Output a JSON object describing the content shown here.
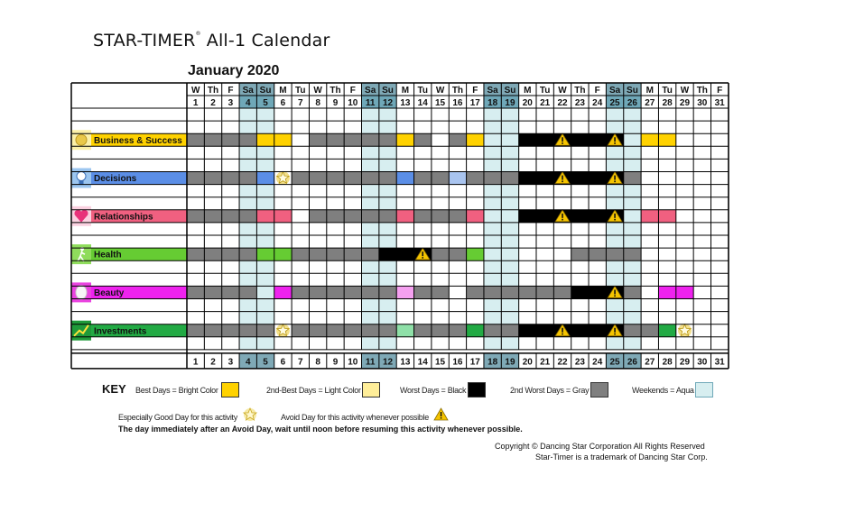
{
  "header": {
    "brand": "STAR-TIMER",
    "brand_mark": "®",
    "subtitle": "All-1 Calendar",
    "month": "January 2020"
  },
  "calendar": {
    "days": [
      {
        "dow": "W",
        "num": "1"
      },
      {
        "dow": "Th",
        "num": "2"
      },
      {
        "dow": "F",
        "num": "3"
      },
      {
        "dow": "Sa",
        "num": "4"
      },
      {
        "dow": "Su",
        "num": "5"
      },
      {
        "dow": "M",
        "num": "6"
      },
      {
        "dow": "Tu",
        "num": "7"
      },
      {
        "dow": "W",
        "num": "8"
      },
      {
        "dow": "Th",
        "num": "9"
      },
      {
        "dow": "F",
        "num": "10"
      },
      {
        "dow": "Sa",
        "num": "11"
      },
      {
        "dow": "Su",
        "num": "12"
      },
      {
        "dow": "M",
        "num": "13"
      },
      {
        "dow": "Tu",
        "num": "14"
      },
      {
        "dow": "W",
        "num": "15"
      },
      {
        "dow": "Th",
        "num": "16"
      },
      {
        "dow": "F",
        "num": "17"
      },
      {
        "dow": "Sa",
        "num": "18"
      },
      {
        "dow": "Su",
        "num": "19"
      },
      {
        "dow": "M",
        "num": "20"
      },
      {
        "dow": "Tu",
        "num": "21"
      },
      {
        "dow": "W",
        "num": "22"
      },
      {
        "dow": "Th",
        "num": "23"
      },
      {
        "dow": "F",
        "num": "24"
      },
      {
        "dow": "Sa",
        "num": "25"
      },
      {
        "dow": "Su",
        "num": "26"
      },
      {
        "dow": "M",
        "num": "27"
      },
      {
        "dow": "Tu",
        "num": "28"
      },
      {
        "dow": "W",
        "num": "29"
      },
      {
        "dow": "Th",
        "num": "30"
      },
      {
        "dow": "F",
        "num": "31"
      }
    ],
    "weekend_days": [
      4,
      5,
      11,
      12,
      18,
      19,
      25,
      26
    ],
    "colors": {
      "gray": "#7f7f7f",
      "black": "#000000",
      "aqua": "#d7eef0",
      "aqua_border": "#6fa8b8"
    },
    "activities": [
      {
        "name": "Business & Success",
        "icon": "coins-icon",
        "color": "#ffd200",
        "light": "#ffd200",
        "gray": [
          1,
          2,
          3,
          4,
          8,
          9,
          10,
          11,
          12,
          14,
          16
        ],
        "black": [
          20,
          21,
          22,
          23,
          24,
          25
        ],
        "bright": [
          5,
          6,
          13,
          17,
          27,
          28
        ],
        "light_days": [],
        "good": [],
        "avoid": [
          22,
          25
        ]
      },
      {
        "name": "Decisions",
        "icon": "lightbulb-icon",
        "color": "#5b8ee6",
        "light": "#a9c4ef",
        "gray": [
          1,
          2,
          3,
          4,
          7,
          8,
          9,
          10,
          11,
          12,
          14,
          15,
          17,
          18,
          19,
          26
        ],
        "black": [
          20,
          21,
          22,
          23,
          24,
          25
        ],
        "bright": [
          5,
          13
        ],
        "light_days": [
          16
        ],
        "good": [
          6
        ],
        "avoid": [
          22,
          25
        ]
      },
      {
        "name": "Relationships",
        "icon": "heart-icon",
        "color": "#f06080",
        "light": "#f06080",
        "gray": [
          1,
          2,
          3,
          4,
          8,
          9,
          10,
          11,
          12,
          14,
          15,
          16
        ],
        "black": [
          20,
          21,
          22,
          23,
          24,
          25
        ],
        "bright": [
          5,
          6,
          13,
          17,
          27,
          28
        ],
        "light_days": [],
        "good": [],
        "avoid": [
          22,
          25
        ]
      },
      {
        "name": "Health",
        "icon": "runner-icon",
        "color": "#66cc33",
        "light": "#66cc33",
        "gray": [
          1,
          2,
          3,
          4,
          7,
          8,
          9,
          10,
          11,
          15,
          16,
          23,
          24,
          25,
          26
        ],
        "black": [
          12,
          13,
          14
        ],
        "bright": [
          5,
          6,
          17
        ],
        "light_days": [],
        "good": [],
        "avoid": [
          14
        ]
      },
      {
        "name": "Beauty",
        "icon": "mirror-icon",
        "color": "#ee22ee",
        "light": "#f5a0f0",
        "gray": [
          1,
          2,
          3,
          4,
          7,
          8,
          9,
          10,
          11,
          12,
          14,
          15,
          17,
          18,
          19,
          20,
          21,
          22,
          26
        ],
        "black": [
          23,
          24,
          25
        ],
        "bright": [
          6,
          28,
          29
        ],
        "light_days": [
          13
        ],
        "good": [],
        "avoid": [
          25
        ]
      },
      {
        "name": "Investments",
        "icon": "chart-up-icon",
        "color": "#22aa44",
        "light": "#8fe0a8",
        "gray": [
          1,
          2,
          3,
          4,
          5,
          7,
          8,
          9,
          10,
          11,
          12,
          14,
          15,
          16,
          18,
          19,
          26,
          27
        ],
        "black": [
          20,
          21,
          22,
          23,
          24,
          25
        ],
        "bright": [
          17,
          28
        ],
        "light_days": [
          13
        ],
        "good": [
          6,
          29
        ],
        "avoid": [
          22,
          25
        ]
      }
    ]
  },
  "key": {
    "title": "KEY",
    "best": "Best Days = Bright Color",
    "best_color": "#ffd200",
    "second": "2nd-Best Days = Light Color",
    "second_color": "#ffee99",
    "worst": "Worst Days = Black",
    "worst_color": "#000000",
    "second_worst": "2nd Worst Days = Gray",
    "second_worst_color": "#7f7f7f",
    "weekends": "Weekends = Aqua",
    "weekends_color": "#d7eef0",
    "good_day": "Especially Good Day for this activity",
    "avoid_day": "Avoid Day for this activity whenever possible",
    "note": "The day immediately after an Avoid Day, wait until noon before resuming this activity whenever possible."
  },
  "footer": {
    "copyright": "Copyright © Dancing Star Corporation All Rights Reserved",
    "trademark": "Star-Timer is a trademark of Dancing Star Corp."
  }
}
